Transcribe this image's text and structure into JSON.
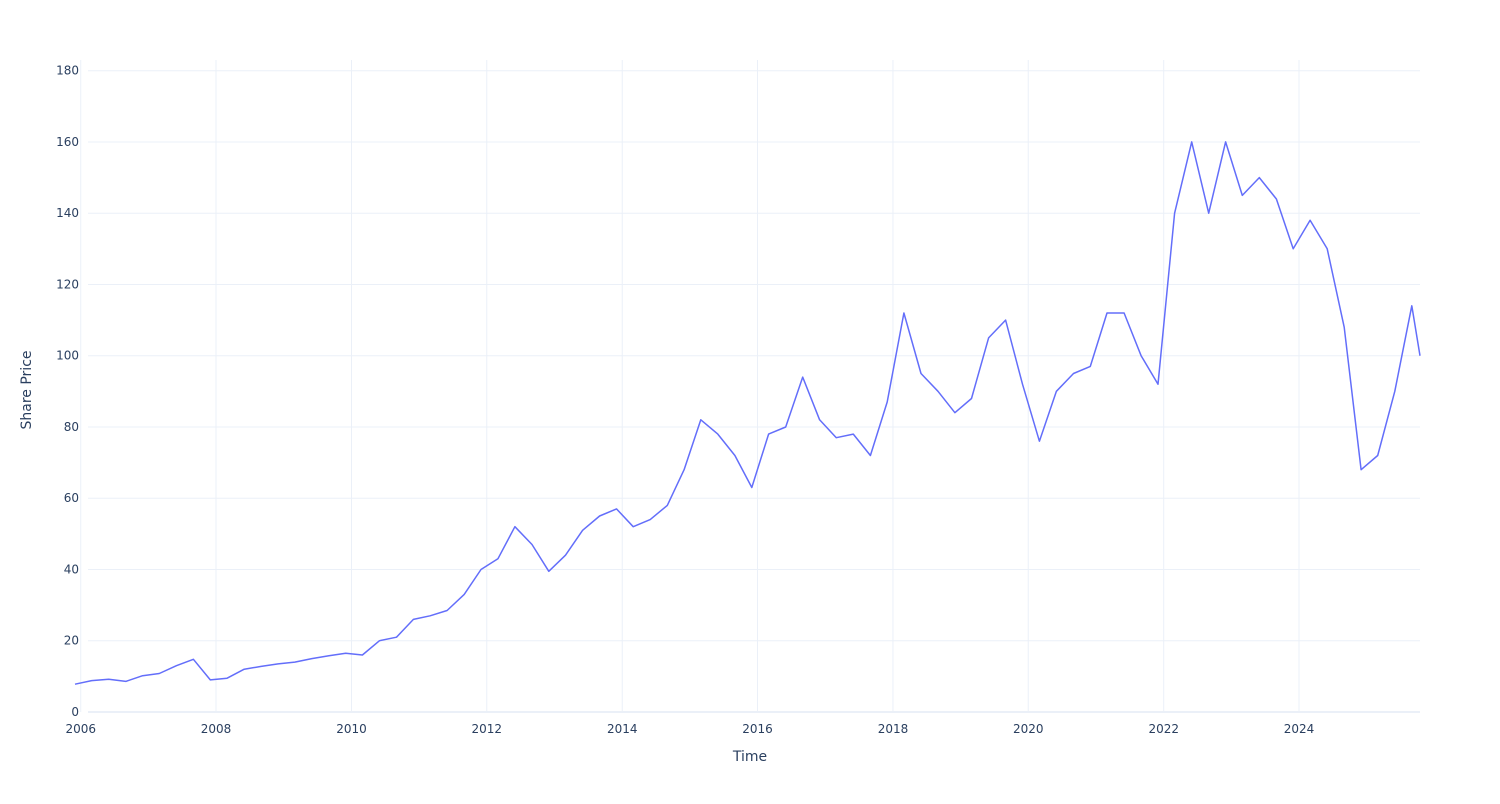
{
  "chart_data": {
    "type": "line",
    "title": "",
    "xlabel": "Time",
    "ylabel": "Share Price",
    "xlim": [
      "2005-12-01",
      "2025-10-15"
    ],
    "ylim": [
      0,
      183
    ],
    "grid": true,
    "x_ticks": [
      "2006",
      "2008",
      "2010",
      "2012",
      "2014",
      "2016",
      "2018",
      "2020",
      "2022",
      "2024"
    ],
    "y_ticks": [
      0,
      20,
      40,
      60,
      80,
      100,
      120,
      140,
      160,
      180
    ],
    "line_color": "#636efa",
    "series": [
      {
        "x": [
          "2005-12-01",
          "2006-03-01",
          "2006-06-01",
          "2006-09-01",
          "2006-12-01",
          "2007-03-01",
          "2007-06-01",
          "2007-09-01",
          "2007-12-01",
          "2008-03-01",
          "2008-06-01",
          "2008-09-01",
          "2008-12-01",
          "2009-03-01",
          "2009-06-01",
          "2009-09-01",
          "2009-12-01",
          "2010-03-01",
          "2010-06-01",
          "2010-09-01",
          "2010-12-01",
          "2011-03-01",
          "2011-06-01",
          "2011-09-01",
          "2011-12-01",
          "2012-03-01",
          "2012-06-01",
          "2012-09-01",
          "2012-12-01",
          "2013-03-01",
          "2013-06-01",
          "2013-09-01",
          "2013-12-01",
          "2014-03-01",
          "2014-06-01",
          "2014-09-01",
          "2014-12-01",
          "2015-03-01",
          "2015-06-01",
          "2015-09-01",
          "2015-12-01",
          "2016-03-01",
          "2016-06-01",
          "2016-09-01",
          "2016-12-01",
          "2017-03-01",
          "2017-06-01",
          "2017-09-01",
          "2017-12-01",
          "2018-03-01",
          "2018-06-01",
          "2018-09-01",
          "2018-12-01",
          "2019-03-01",
          "2019-06-01",
          "2019-09-01",
          "2019-12-01",
          "2020-03-01",
          "2020-06-01",
          "2020-09-01",
          "2020-12-01",
          "2021-03-01",
          "2021-06-01",
          "2021-09-01",
          "2021-12-01",
          "2022-03-01",
          "2022-06-01",
          "2022-09-01",
          "2022-12-01",
          "2023-03-01",
          "2023-06-01",
          "2023-09-01",
          "2023-12-01",
          "2024-03-01",
          "2024-06-01",
          "2024-09-01",
          "2024-12-01",
          "2025-03-01",
          "2025-06-01",
          "2025-09-01",
          "2025-10-15"
        ],
        "y": [
          7.8,
          8.8,
          9.2,
          8.6,
          10.2,
          10.8,
          13.0,
          14.8,
          9.0,
          9.5,
          12.0,
          12.8,
          13.5,
          14.0,
          15.0,
          15.8,
          16.5,
          16.0,
          20.0,
          21.0,
          26.0,
          27.0,
          28.5,
          33.0,
          40.0,
          43.0,
          52.0,
          47.0,
          39.5,
          44.0,
          51.0,
          55.0,
          57.0,
          52.0,
          54.0,
          58.0,
          68.0,
          82.0,
          78.0,
          72.0,
          63.0,
          78.0,
          80.0,
          94.0,
          82.0,
          77.0,
          78.0,
          72.0,
          87.0,
          112.0,
          95.0,
          90.0,
          84.0,
          88.0,
          105.0,
          110.0,
          92.0,
          76.0,
          90.0,
          95.0,
          97.0,
          112.0,
          112.0,
          100.0,
          92.0,
          140.0,
          160.0,
          140.0,
          160.0,
          145.0,
          150.0,
          144.0,
          130.0,
          138.0,
          130.0,
          108.0,
          68.0,
          72.0,
          90.0,
          114.0,
          100.0
        ]
      }
    ]
  }
}
